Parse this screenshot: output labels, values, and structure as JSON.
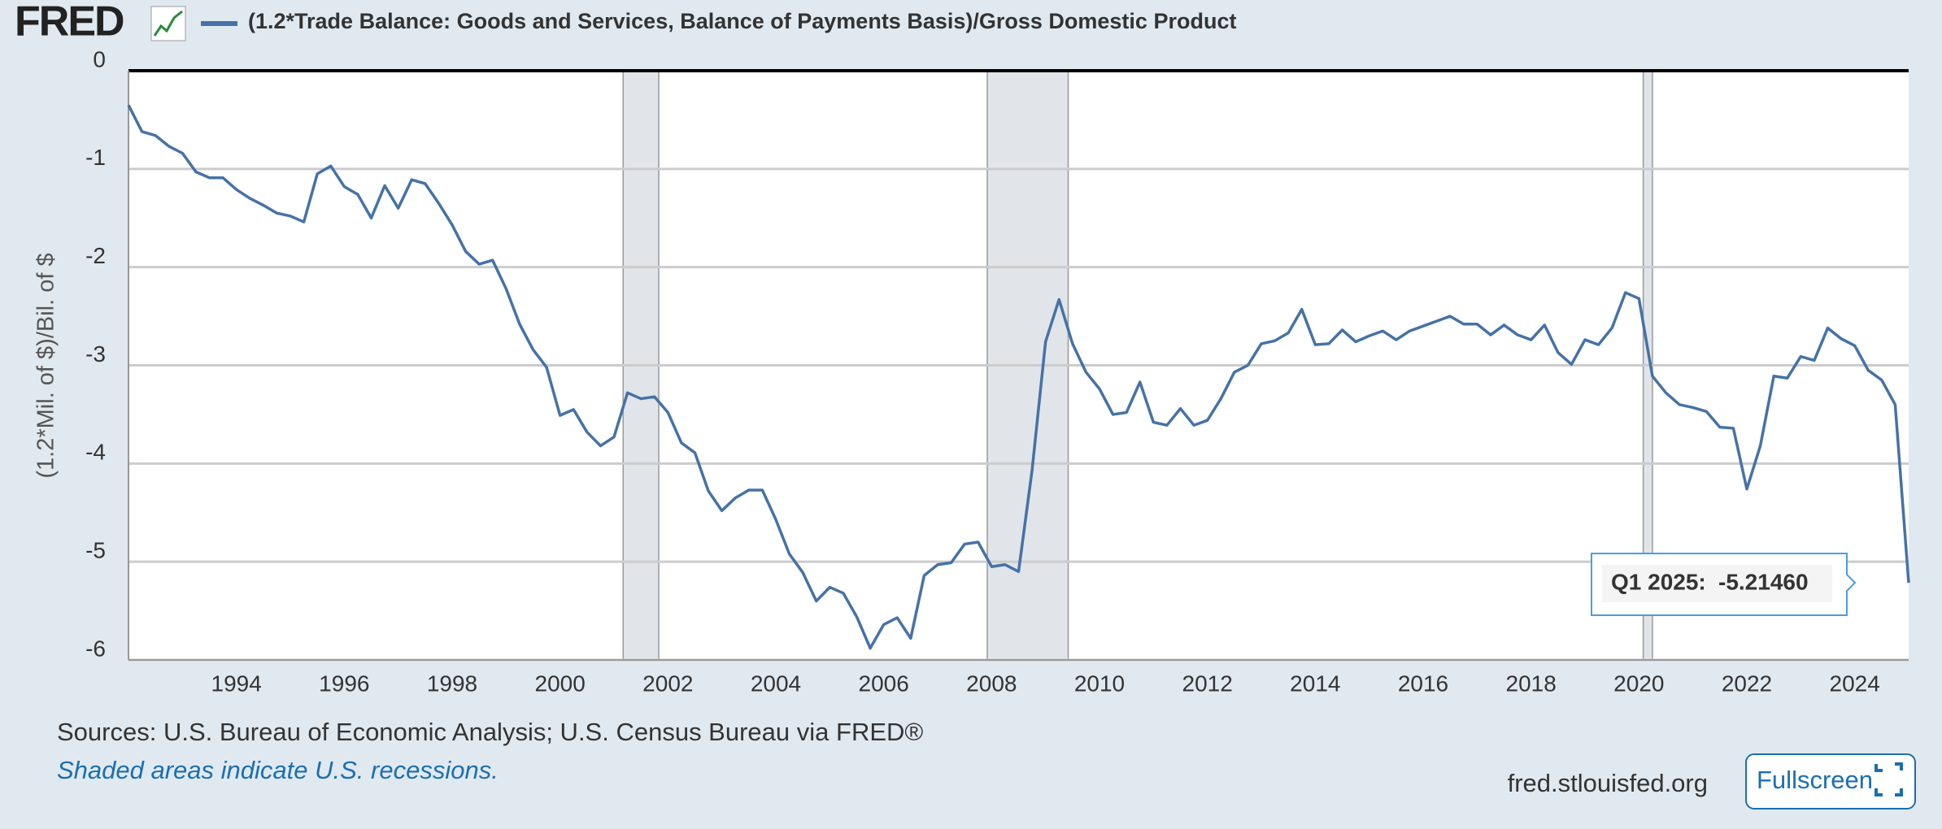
{
  "logo": "FRED",
  "sources": "Sources: U.S. Bureau of Economic Analysis; U.S. Census Bureau via FRED®",
  "note": "Shaded areas indicate U.S. recessions.",
  "site": "fred.stlouisfed.org",
  "button": "Fullscreen",
  "chart_data": {
    "type": "line",
    "y_label": "(1.2*Mil. of $)/Bil. of $",
    "series": [
      {
        "name": "(1.2*Trade Balance: Goods and Services, Balance of Payments Basis)/Gross Domestic Product",
        "color": "#4572a7",
        "values": [
          -0.35,
          -0.62,
          -0.66,
          -0.77,
          -0.84,
          -1.03,
          -1.09,
          -1.09,
          -1.21,
          -1.3,
          -1.37,
          -1.45,
          -1.48,
          -1.54,
          -1.05,
          -0.97,
          -1.18,
          -1.26,
          -1.5,
          -1.17,
          -1.4,
          -1.11,
          -1.15,
          -1.35,
          -1.57,
          -1.84,
          -1.97,
          -1.93,
          -2.22,
          -2.58,
          -2.84,
          -3.02,
          -3.51,
          -3.45,
          -3.68,
          -3.82,
          -3.73,
          -3.28,
          -3.34,
          -3.32,
          -3.48,
          -3.79,
          -3.89,
          -4.28,
          -4.48,
          -4.35,
          -4.27,
          -4.27,
          -4.57,
          -4.92,
          -5.11,
          -5.4,
          -5.26,
          -5.32,
          -5.56,
          -5.88,
          -5.64,
          -5.57,
          -5.78,
          -5.14,
          -5.03,
          -5.01,
          -4.82,
          -4.8,
          -5.05,
          -5.03,
          -5.1,
          -4.07,
          -2.76,
          -2.33,
          -2.78,
          -3.07,
          -3.24,
          -3.5,
          -3.48,
          -3.17,
          -3.58,
          -3.61,
          -3.44,
          -3.61,
          -3.56,
          -3.34,
          -3.07,
          -3.0,
          -2.78,
          -2.75,
          -2.67,
          -2.43,
          -2.79,
          -2.78,
          -2.64,
          -2.76,
          -2.7,
          -2.65,
          -2.74,
          -2.65,
          -2.6,
          -2.55,
          -2.5,
          -2.58,
          -2.58,
          -2.69,
          -2.59,
          -2.69,
          -2.74,
          -2.59,
          -2.87,
          -2.99,
          -2.74,
          -2.79,
          -2.62,
          -2.26,
          -2.32,
          -3.11,
          -3.28,
          -3.4,
          -3.43,
          -3.47,
          -3.63,
          -3.64,
          -4.26,
          -3.82,
          -3.11,
          -3.13,
          -2.91,
          -2.95,
          -2.62,
          -2.73,
          -2.8,
          -3.05,
          -3.15,
          -3.4,
          -5.2146
        ]
      }
    ],
    "x": [
      1992,
      1992.25,
      1992.5,
      1992.75,
      1993,
      1993.25,
      1993.5,
      1993.75,
      1994,
      1994.25,
      1994.5,
      1994.75,
      1995,
      1995.25,
      1995.5,
      1995.75,
      1996,
      1996.25,
      1996.5,
      1996.75,
      1997,
      1997.25,
      1997.5,
      1997.75,
      1998,
      1998.25,
      1998.5,
      1998.75,
      1999,
      1999.25,
      1999.5,
      1999.75,
      2000,
      2000.25,
      2000.5,
      2000.75,
      2001,
      2001.25,
      2001.5,
      2001.75,
      2002,
      2002.25,
      2002.5,
      2002.75,
      2003,
      2003.25,
      2003.5,
      2003.75,
      2004,
      2004.25,
      2004.5,
      2004.75,
      2005,
      2005.25,
      2005.5,
      2005.75,
      2006,
      2006.25,
      2006.5,
      2006.75,
      2007,
      2007.25,
      2007.5,
      2007.75,
      2008,
      2008.25,
      2008.5,
      2008.75,
      2009,
      2009.25,
      2009.5,
      2009.75,
      2010,
      2010.25,
      2010.5,
      2010.75,
      2011,
      2011.25,
      2011.5,
      2011.75,
      2012,
      2012.25,
      2012.5,
      2012.75,
      2013,
      2013.25,
      2013.5,
      2013.75,
      2014,
      2014.25,
      2014.5,
      2014.75,
      2015,
      2015.25,
      2015.5,
      2015.75,
      2016,
      2016.25,
      2016.5,
      2016.75,
      2017,
      2017.25,
      2017.5,
      2017.75,
      2018,
      2018.25,
      2018.5,
      2018.75,
      2019,
      2019.25,
      2019.5,
      2019.75,
      2020,
      2020.25,
      2020.5,
      2020.75,
      2021,
      2021.25,
      2021.5,
      2021.75,
      2022,
      2022.25,
      2022.5,
      2022.75,
      2023,
      2023.25,
      2023.5,
      2023.75,
      2024,
      2024.25,
      2024.5,
      2024.75,
      2025
    ],
    "recessions": [
      [
        2001.17,
        2001.83
      ],
      [
        2007.92,
        2009.42
      ],
      [
        2020.08,
        2020.25
      ]
    ],
    "xlim": [
      1992,
      2025
    ],
    "xticks": [
      1994,
      1996,
      1998,
      2000,
      2002,
      2004,
      2006,
      2008,
      2010,
      2012,
      2014,
      2016,
      2018,
      2020,
      2022,
      2024
    ],
    "ylim": [
      -6,
      0
    ],
    "yticks": [
      0,
      -1,
      -2,
      -3,
      -4,
      -5,
      -6
    ],
    "grid": true,
    "tooltip": {
      "date": "Q1 2025:",
      "value": "-5.21460"
    }
  }
}
